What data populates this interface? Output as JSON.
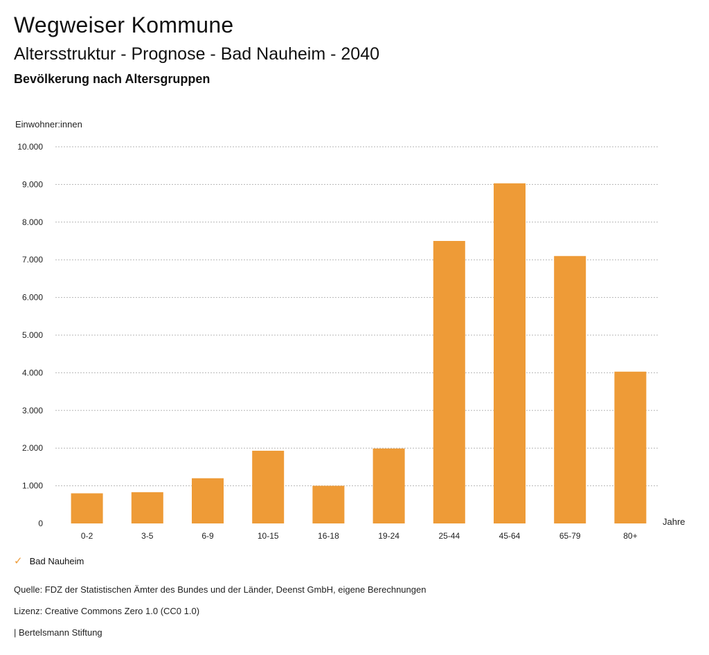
{
  "header": {
    "title": "Wegweiser Kommune",
    "subtitle": "Altersstruktur - Prognose - Bad Nauheim - 2040",
    "heading": "Bevölkerung nach Altersgruppen"
  },
  "chart_data": {
    "type": "bar",
    "ylabel": "Einwohner:innen",
    "xlabel": "Jahre",
    "categories": [
      "0-2",
      "3-5",
      "6-9",
      "10-15",
      "16-18",
      "19-24",
      "25-44",
      "45-64",
      "65-79",
      "80+"
    ],
    "series": [
      {
        "name": "Bad Nauheim",
        "values": [
          800,
          830,
          1200,
          1930,
          1000,
          1990,
          7500,
          9030,
          7100,
          4030
        ],
        "color": "#ee9b37"
      }
    ],
    "ylim": [
      0,
      10000
    ],
    "yticks": [
      0,
      1000,
      2000,
      3000,
      4000,
      5000,
      6000,
      7000,
      8000,
      9000,
      10000
    ],
    "ytick_labels": [
      "0",
      "1.000",
      "2.000",
      "3.000",
      "4.000",
      "5.000",
      "6.000",
      "7.000",
      "8.000",
      "9.000",
      "10.000"
    ],
    "grid": true,
    "legend_position": "bottom-left"
  },
  "legend": {
    "label": "Bad Nauheim"
  },
  "footer": {
    "source": "Quelle: FDZ der Statistischen Ämter des Bundes und der Länder, Deenst GmbH, eigene Berechnungen",
    "license": "Lizenz: Creative Commons Zero 1.0 (CC0 1.0)",
    "publisher": "| Bertelsmann Stiftung"
  }
}
